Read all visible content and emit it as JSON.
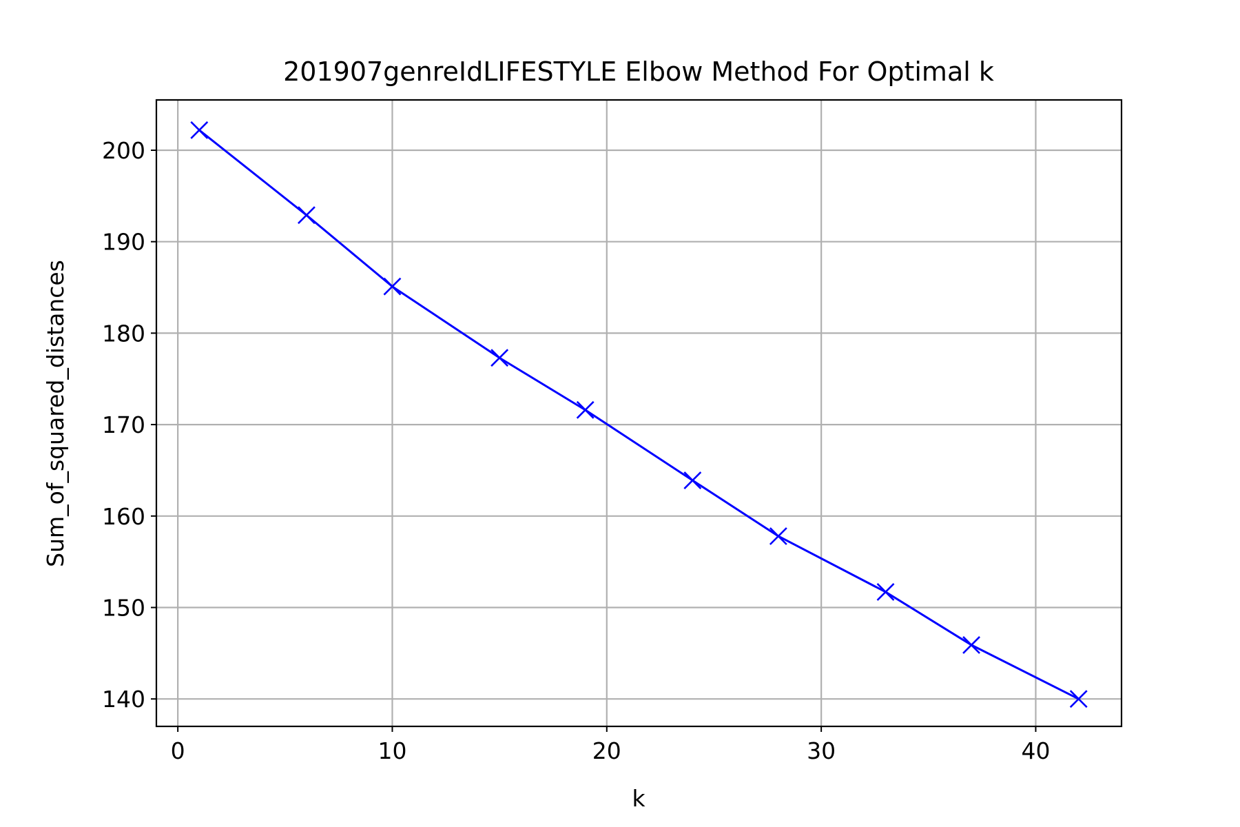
{
  "chart_data": {
    "type": "line",
    "title": "201907genreIdLIFESTYLE Elbow Method For Optimal k",
    "xlabel": "k",
    "ylabel": "Sum_of_squared_distances",
    "xlim": [
      -1,
      44
    ],
    "ylim": [
      137,
      205.5
    ],
    "xticks": [
      0,
      10,
      20,
      30,
      40
    ],
    "yticks": [
      140,
      150,
      160,
      170,
      180,
      190,
      200
    ],
    "grid": true,
    "series": [
      {
        "color": "#0000ff",
        "marker": "x",
        "x": [
          1,
          6,
          10,
          15,
          19,
          24,
          28,
          33,
          37,
          42
        ],
        "y": [
          202.2,
          192.9,
          185.1,
          177.3,
          171.6,
          163.9,
          157.8,
          151.7,
          145.9,
          140.0
        ]
      }
    ]
  }
}
